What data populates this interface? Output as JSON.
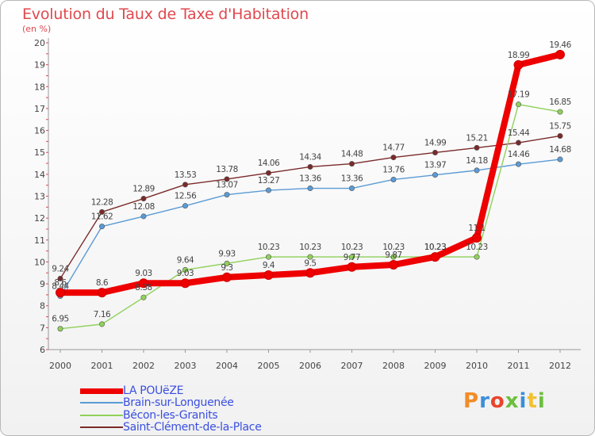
{
  "title": "Evolution du Taux de Taxe d'Habitation",
  "subtitle": "(en %)",
  "logo": {
    "text": "Proxiti",
    "colors": [
      "#f28c28",
      "#3b8fd8",
      "#e8452c",
      "#6cbf3c",
      "#3b8fd8",
      "#f2c12e",
      "#6cbf3c"
    ]
  },
  "chart_data": {
    "type": "line",
    "x": [
      "2000",
      "2001",
      "2002",
      "2003",
      "2004",
      "2005",
      "2006",
      "2007",
      "2008",
      "2009",
      "2010",
      "2011",
      "2012"
    ],
    "yticks": [
      "6",
      "7",
      "8",
      "9",
      "10",
      "11",
      "12",
      "13",
      "14",
      "15",
      "16",
      "17",
      "18",
      "19",
      "20"
    ],
    "ylim": [
      6,
      20
    ],
    "grid": false,
    "series": [
      {
        "name": "LA POUëZE",
        "color": "#ee0000",
        "values": [
          8.6,
          8.6,
          9.03,
          9.03,
          9.3,
          9.4,
          9.5,
          9.77,
          9.87,
          10.23,
          11.1,
          18.99,
          19.46
        ],
        "labels": [
          "8.6",
          "8.6",
          "9.03",
          "9.03",
          "9.3",
          "9.4",
          "9.5",
          "9.77",
          "9.87",
          "10.23",
          "11.1",
          "18.99",
          "19.46"
        ]
      },
      {
        "name": "Brain-sur-Longuenée",
        "color": "#5a9bd5",
        "values": [
          8.44,
          11.62,
          12.08,
          12.56,
          13.07,
          13.27,
          13.36,
          13.36,
          13.76,
          13.97,
          14.18,
          14.46,
          14.68
        ],
        "labels": [
          "8.44",
          "11.62",
          "12.08",
          "12.56",
          "13.07",
          "13.27",
          "13.36",
          "13.36",
          "13.76",
          "13.97",
          "14.18",
          "14.46",
          "14.68"
        ]
      },
      {
        "name": "Bécon-les-Granits",
        "color": "#8fd15a",
        "values": [
          6.95,
          7.16,
          8.38,
          9.64,
          9.93,
          10.23,
          10.23,
          10.23,
          10.23,
          10.23,
          10.23,
          17.19,
          16.85
        ],
        "labels": [
          "6.95",
          "7.16",
          "8.38",
          "9.64",
          "9.93",
          "10.23",
          "10.23",
          "10.23",
          "10.23",
          "10.23",
          "10.23",
          "17.19",
          "16.85"
        ]
      },
      {
        "name": "Saint-Clément-de-la-Place",
        "color": "#7b2a2a",
        "values": [
          9.24,
          12.28,
          12.89,
          13.53,
          13.78,
          14.06,
          14.34,
          14.48,
          14.77,
          14.99,
          15.21,
          15.44,
          15.75
        ],
        "labels": [
          "9.24",
          "12.28",
          "12.89",
          "13.53",
          "13.78",
          "14.06",
          "14.34",
          "14.48",
          "14.77",
          "14.99",
          "15.21",
          "15.44",
          "15.75"
        ]
      }
    ],
    "legend": "bottom-left"
  }
}
